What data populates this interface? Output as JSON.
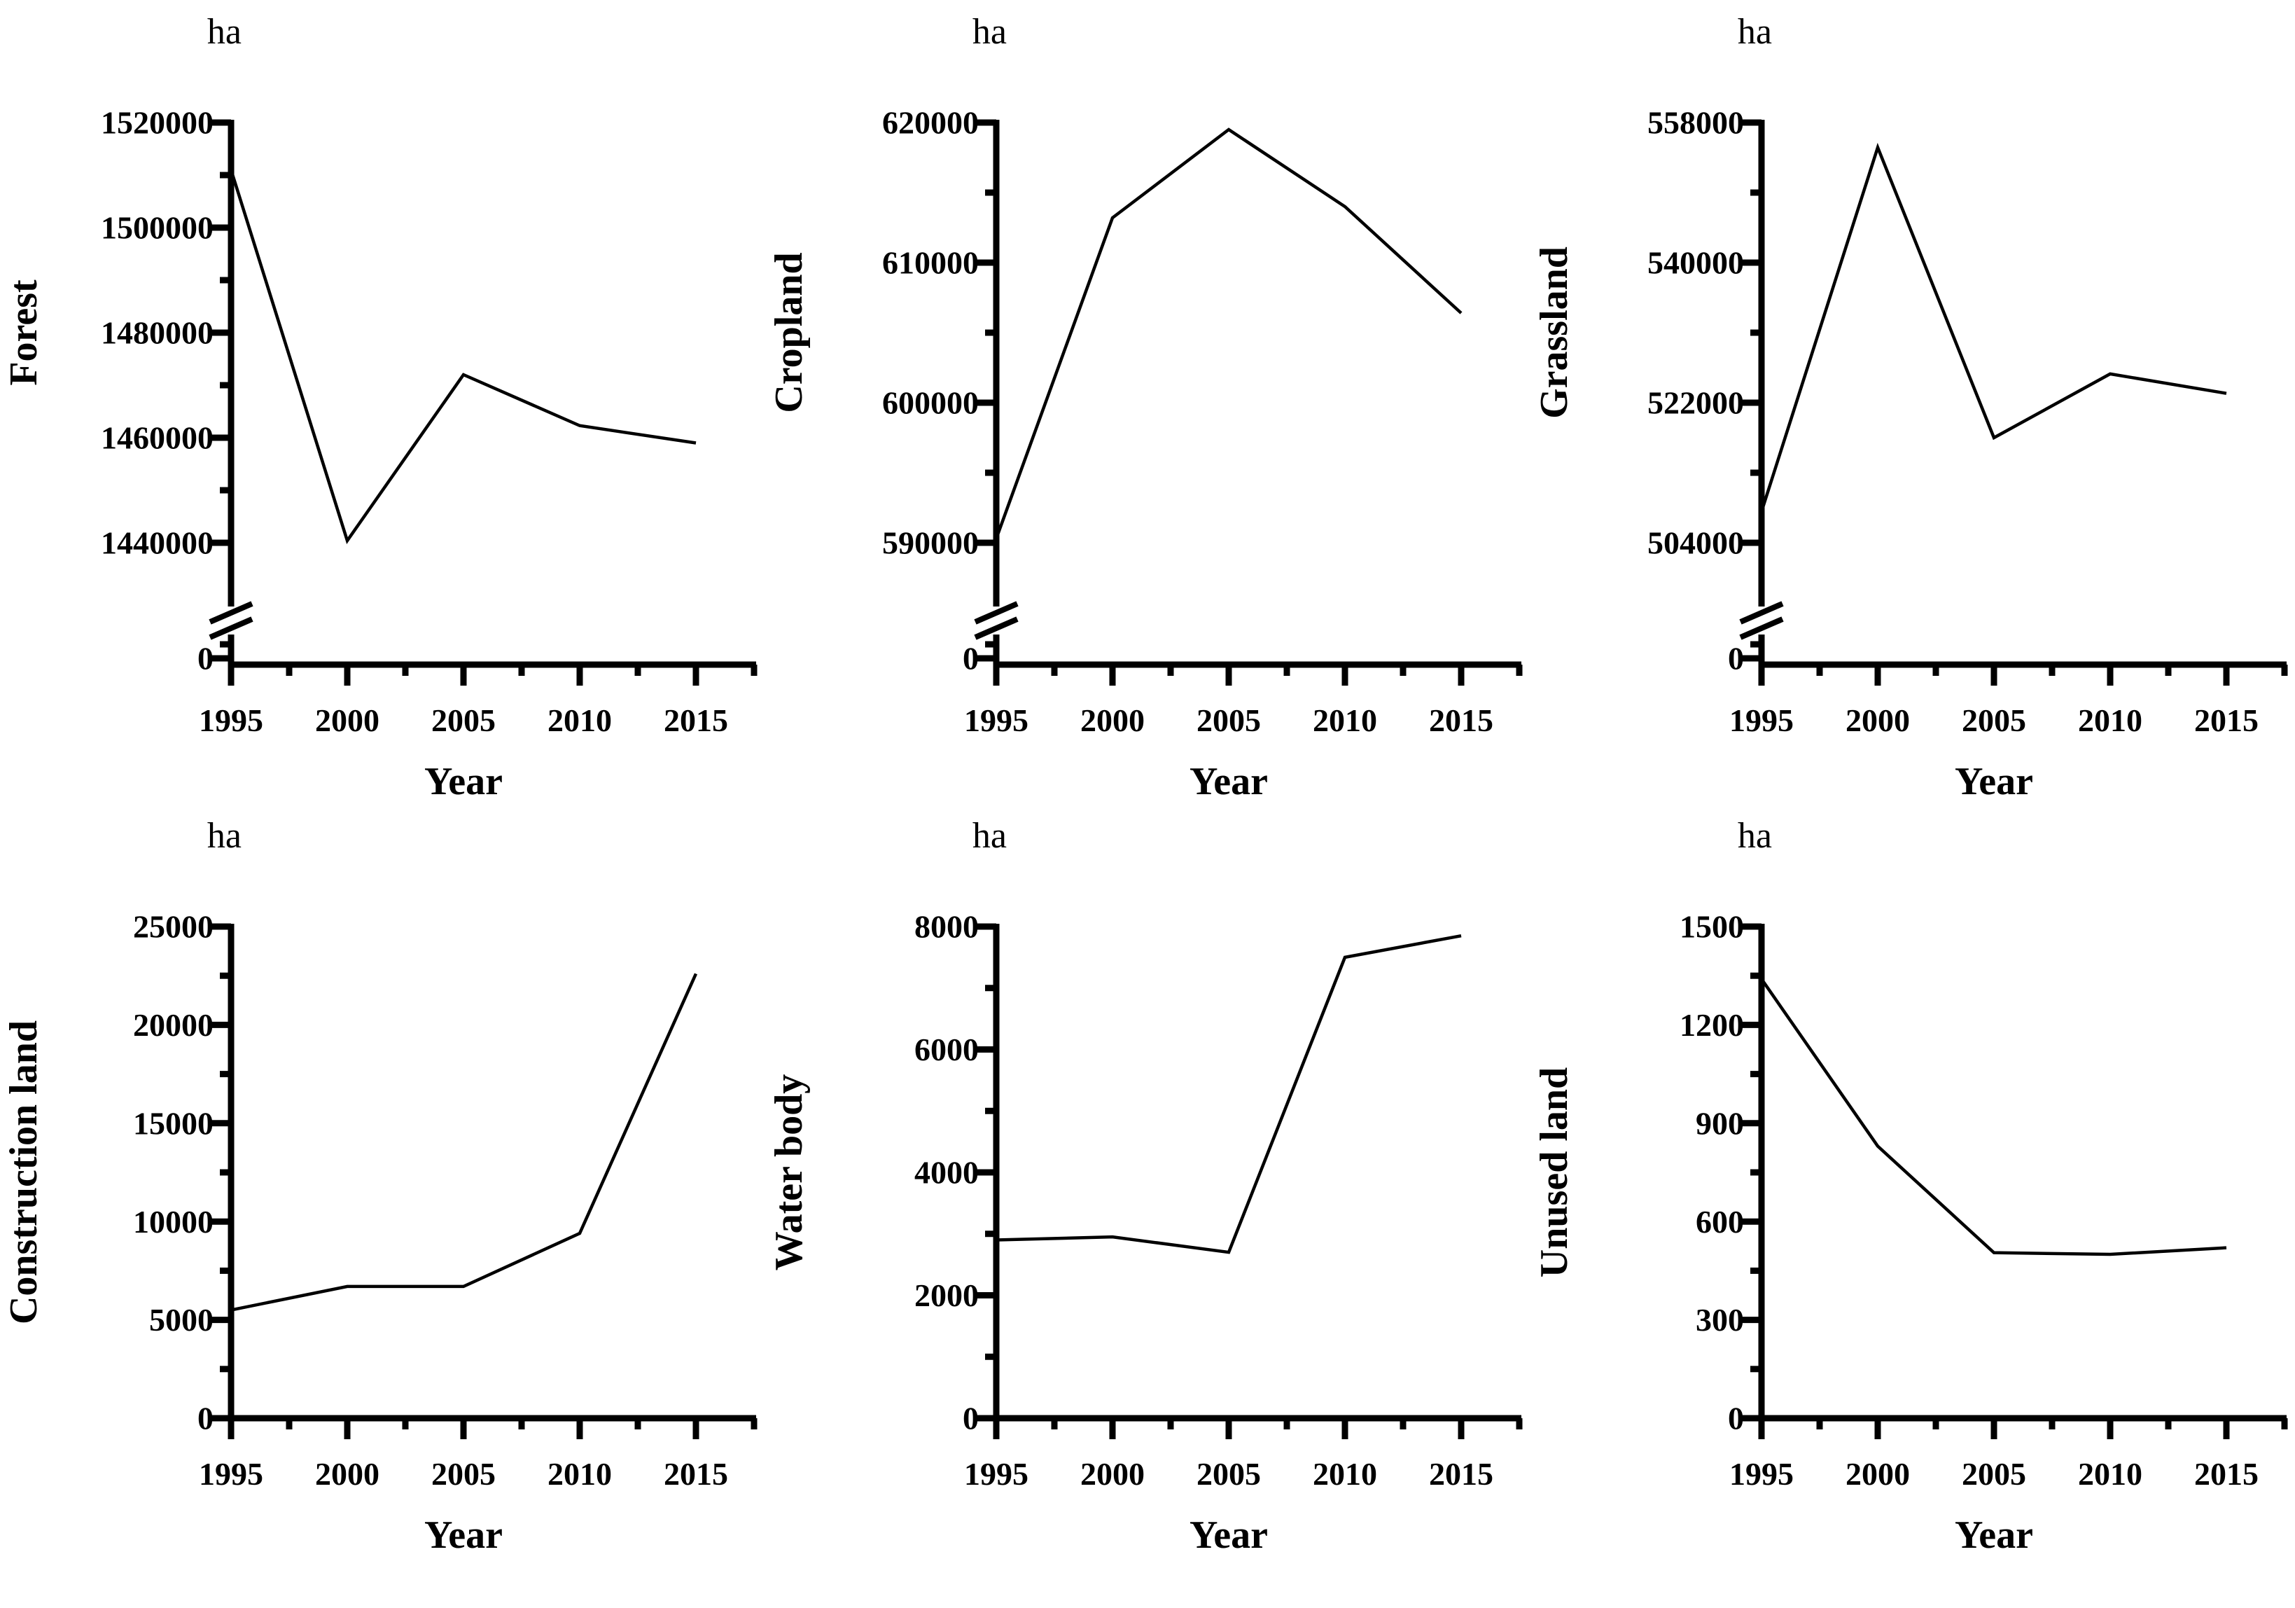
{
  "figure": {
    "unit_label": "ha",
    "x_axis_title": "Year",
    "years": [
      1995,
      2000,
      2005,
      2010,
      2015
    ]
  },
  "chart_data": [
    {
      "type": "line",
      "ylabel": "Forest",
      "unit": "ha",
      "xlabel": "Year",
      "x": [
        1995,
        2000,
        2005,
        2010,
        2015
      ],
      "values": [
        1511000,
        1440400,
        1472000,
        1462300,
        1459000
      ],
      "ytick_labels": [
        "1520000",
        "1500000",
        "1480000",
        "1460000",
        "1440000"
      ],
      "zero_label": "0",
      "axis_break": true,
      "ylim_labeled": [
        1440000,
        1520000
      ],
      "grid": false,
      "legend": "none"
    },
    {
      "type": "line",
      "ylabel": "Cropland",
      "unit": "ha",
      "xlabel": "Year",
      "x": [
        1995,
        2000,
        2005,
        2010,
        2015
      ],
      "values": [
        590300,
        613200,
        619500,
        614000,
        606400
      ],
      "ytick_labels": [
        "620000",
        "610000",
        "600000",
        "590000"
      ],
      "zero_label": "0",
      "axis_break": true,
      "ylim_labeled": [
        590000,
        620000
      ],
      "grid": false,
      "legend": "none"
    },
    {
      "type": "line",
      "ylabel": "Grassland",
      "unit": "ha",
      "xlabel": "Year",
      "x": [
        1995,
        2000,
        2005,
        2010,
        2015
      ],
      "values": [
        508000,
        554800,
        517500,
        525700,
        523200
      ],
      "ytick_labels": [
        "558000",
        "540000",
        "522000",
        "504000"
      ],
      "zero_label": "0",
      "axis_break": true,
      "ylim_labeled": [
        504000,
        558000
      ],
      "grid": false,
      "legend": "none"
    },
    {
      "type": "line",
      "ylabel": "Construction land",
      "unit": "ha",
      "xlabel": "Year",
      "x": [
        1995,
        2000,
        2005,
        2010,
        2015
      ],
      "values": [
        5500,
        6700,
        6700,
        9400,
        22600
      ],
      "ytick_labels": [
        "25000",
        "20000",
        "15000",
        "10000",
        "5000",
        "0"
      ],
      "zero_label": "0",
      "axis_break": false,
      "ylim_labeled": [
        0,
        25000
      ],
      "grid": false,
      "legend": "none"
    },
    {
      "type": "line",
      "ylabel": "Water body",
      "unit": "ha",
      "xlabel": "Year",
      "x": [
        1995,
        2000,
        2005,
        2010,
        2015
      ],
      "values": [
        2900,
        2950,
        2700,
        7500,
        7850
      ],
      "ytick_labels": [
        "8000",
        "6000",
        "4000",
        "2000",
        "0"
      ],
      "zero_label": "0",
      "axis_break": false,
      "ylim_labeled": [
        0,
        8000
      ],
      "grid": false,
      "legend": "none"
    },
    {
      "type": "line",
      "ylabel": "Unused land",
      "unit": "ha",
      "xlabel": "Year",
      "x": [
        1995,
        2000,
        2005,
        2010,
        2015
      ],
      "values": [
        1340,
        830,
        505,
        500,
        520
      ],
      "ytick_labels": [
        "1500",
        "1200",
        "900",
        "600",
        "300",
        "0"
      ],
      "zero_label": "0",
      "axis_break": false,
      "ylim_labeled": [
        0,
        1500
      ],
      "grid": false,
      "legend": "none"
    }
  ]
}
